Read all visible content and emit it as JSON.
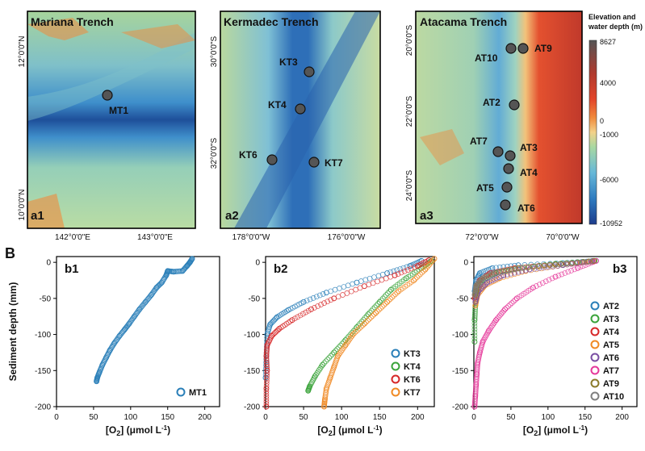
{
  "figure_labels": {
    "panel_b": "B"
  },
  "maps": [
    {
      "id": "a1",
      "title": "Mariana Trench",
      "panel": "a1",
      "yticks": [
        "12°0'0\"N",
        "10°0'0\"N"
      ],
      "xticks": [
        "142°0'0\"E",
        "143°0'0\"E"
      ],
      "sites": [
        {
          "name": "MT1"
        }
      ]
    },
    {
      "id": "a2",
      "title": "Kermadec Trench",
      "panel": "a2",
      "yticks": [
        "30°0'0\"S",
        "32°0'0\"S"
      ],
      "xticks": [
        "178°0'0\"W",
        "176°0'0\"W"
      ],
      "sites": [
        {
          "name": "KT3"
        },
        {
          "name": "KT4"
        },
        {
          "name": "KT6"
        },
        {
          "name": "KT7"
        }
      ]
    },
    {
      "id": "a3",
      "title": "Atacama Trench",
      "panel": "a3",
      "yticks": [
        "20°0'0\"S",
        "22°0'0\"S",
        "24°0'0\"S"
      ],
      "xticks": [
        "72°0'0\"W",
        "70°0'0\"W"
      ],
      "sites": [
        {
          "name": "AT10"
        },
        {
          "name": "AT9"
        },
        {
          "name": "AT2"
        },
        {
          "name": "AT7"
        },
        {
          "name": "AT3"
        },
        {
          "name": "AT4"
        },
        {
          "name": "AT5"
        },
        {
          "name": "AT6"
        }
      ]
    }
  ],
  "colorbar": {
    "title_line1": "Elevation and",
    "title_line2": "water depth (m)",
    "labels": [
      "8627",
      "4000",
      "0",
      "-1000",
      "-6000",
      "-10952"
    ],
    "colors": [
      "#555555",
      "#c0392b",
      "#e2452a",
      "#f08a3c",
      "#f3d28a",
      "#a8d8a2",
      "#67b8d8",
      "#2f7cc0",
      "#1d3c8c"
    ]
  },
  "chart_data": [
    {
      "type": "scatter",
      "panel": "b1",
      "xlabel": "[O2] (μmol L-1)",
      "ylabel": "Sediment depth (mm)",
      "xlim": [
        0,
        220
      ],
      "ylim": [
        -200,
        8
      ],
      "xticks": [
        0,
        50,
        100,
        150,
        200
      ],
      "yticks": [
        0,
        -50,
        -100,
        -150,
        -200
      ],
      "legend_position": "bottom-right",
      "series": [
        {
          "name": "MT1",
          "color": "#2a7fb8",
          "points": [
            [
              183,
              5
            ],
            [
              180,
              0
            ],
            [
              176,
              -5
            ],
            [
              170,
              -12
            ],
            [
              158,
              -13
            ],
            [
              150,
              -12
            ],
            [
              148,
              -18
            ],
            [
              142,
              -28
            ],
            [
              135,
              -35
            ],
            [
              128,
              -45
            ],
            [
              120,
              -55
            ],
            [
              112,
              -65
            ],
            [
              105,
              -75
            ],
            [
              98,
              -85
            ],
            [
              92,
              -93
            ],
            [
              85,
              -102
            ],
            [
              78,
              -112
            ],
            [
              72,
              -122
            ],
            [
              67,
              -132
            ],
            [
              62,
              -142
            ],
            [
              58,
              -152
            ],
            [
              55,
              -160
            ],
            [
              54,
              -165
            ]
          ]
        }
      ]
    },
    {
      "type": "scatter",
      "panel": "b2",
      "xlabel": "[O2] (μmol L-1)",
      "ylabel": "",
      "xlim": [
        0,
        222
      ],
      "ylim": [
        -200,
        8
      ],
      "xticks": [
        0,
        50,
        100,
        150,
        200
      ],
      "yticks": [
        0,
        -50,
        -100,
        -150,
        -200
      ],
      "legend_position": "bottom-right",
      "series": [
        {
          "name": "KT3",
          "color": "#2a7fb8",
          "points": [
            [
              205,
              2
            ],
            [
              190,
              -5
            ],
            [
              160,
              -15
            ],
            [
              120,
              -28
            ],
            [
              80,
              -42
            ],
            [
              50,
              -55
            ],
            [
              30,
              -66
            ],
            [
              15,
              -76
            ],
            [
              6,
              -86
            ],
            [
              2,
              -100
            ],
            [
              1,
              -130
            ],
            [
              0,
              -160
            ]
          ]
        },
        {
          "name": "KT4",
          "color": "#3aa33a",
          "points": [
            [
              218,
              2
            ],
            [
              205,
              -8
            ],
            [
              185,
              -22
            ],
            [
              165,
              -38
            ],
            [
              150,
              -55
            ],
            [
              135,
              -72
            ],
            [
              120,
              -90
            ],
            [
              105,
              -108
            ],
            [
              90,
              -125
            ],
            [
              75,
              -142
            ],
            [
              65,
              -158
            ],
            [
              58,
              -172
            ],
            [
              56,
              -178
            ]
          ]
        },
        {
          "name": "KT6",
          "color": "#d62728",
          "points": [
            [
              215,
              3
            ],
            [
              200,
              -5
            ],
            [
              170,
              -18
            ],
            [
              130,
              -33
            ],
            [
              90,
              -50
            ],
            [
              60,
              -65
            ],
            [
              35,
              -80
            ],
            [
              18,
              -92
            ],
            [
              8,
              -102
            ],
            [
              2,
              -115
            ],
            [
              1,
              -130
            ],
            [
              2,
              -150
            ],
            [
              1,
              -175
            ],
            [
              1,
              -200
            ]
          ]
        },
        {
          "name": "KT7",
          "color": "#f08a24",
          "points": [
            [
              222,
              5
            ],
            [
              210,
              -10
            ],
            [
              195,
              -25
            ],
            [
              175,
              -40
            ],
            [
              160,
              -55
            ],
            [
              145,
              -70
            ],
            [
              130,
              -85
            ],
            [
              115,
              -100
            ],
            [
              105,
              -115
            ],
            [
              95,
              -130
            ],
            [
              90,
              -145
            ],
            [
              85,
              -160
            ],
            [
              80,
              -175
            ],
            [
              78,
              -190
            ],
            [
              77,
              -200
            ]
          ]
        }
      ]
    },
    {
      "type": "scatter",
      "panel": "b3",
      "xlabel": "[O2] (μmol L-1)",
      "ylabel": "",
      "xlim": [
        0,
        220
      ],
      "ylim": [
        -200,
        8
      ],
      "xticks": [
        0,
        50,
        100,
        150,
        200
      ],
      "yticks": [
        0,
        -50,
        -100,
        -150,
        -200
      ],
      "legend_position": "right",
      "series": [
        {
          "name": "AT2",
          "color": "#2a7fb8",
          "points": [
            [
              165,
              2
            ],
            [
              120,
              -1
            ],
            [
              60,
              -4
            ],
            [
              25,
              -8
            ],
            [
              8,
              -15
            ],
            [
              3,
              -25
            ],
            [
              1,
              -40
            ]
          ]
        },
        {
          "name": "AT3",
          "color": "#3aa33a",
          "points": [
            [
              163,
              2
            ],
            [
              110,
              -2
            ],
            [
              60,
              -8
            ],
            [
              30,
              -15
            ],
            [
              12,
              -25
            ],
            [
              4,
              -40
            ],
            [
              2,
              -60
            ],
            [
              1,
              -80
            ],
            [
              1,
              -110
            ]
          ]
        },
        {
          "name": "AT4",
          "color": "#d62728",
          "points": [
            [
              160,
              1
            ],
            [
              110,
              -3
            ],
            [
              55,
              -8
            ],
            [
              22,
              -15
            ],
            [
              8,
              -25
            ],
            [
              3,
              -35
            ],
            [
              1,
              -50
            ]
          ]
        },
        {
          "name": "AT5",
          "color": "#f08a24",
          "points": [
            [
              162,
              2
            ],
            [
              120,
              -4
            ],
            [
              70,
              -12
            ],
            [
              35,
              -22
            ],
            [
              15,
              -32
            ],
            [
              5,
              -45
            ],
            [
              2,
              -60
            ]
          ]
        },
        {
          "name": "AT6",
          "color": "#7a4fa3",
          "points": [
            [
              160,
              2
            ],
            [
              120,
              -4
            ],
            [
              75,
              -10
            ],
            [
              40,
              -18
            ],
            [
              18,
              -28
            ],
            [
              6,
              -40
            ],
            [
              2,
              -55
            ]
          ]
        },
        {
          "name": "AT7",
          "color": "#e5389a",
          "points": [
            [
              165,
              2
            ],
            [
              140,
              -8
            ],
            [
              110,
              -20
            ],
            [
              80,
              -35
            ],
            [
              58,
              -50
            ],
            [
              42,
              -65
            ],
            [
              30,
              -80
            ],
            [
              20,
              -95
            ],
            [
              12,
              -110
            ],
            [
              8,
              -125
            ],
            [
              5,
              -140
            ],
            [
              4,
              -155
            ],
            [
              3,
              -170
            ],
            [
              2,
              -185
            ],
            [
              1,
              -200
            ]
          ]
        },
        {
          "name": "AT9",
          "color": "#8b7a2a",
          "points": [
            [
              162,
              2
            ],
            [
              110,
              -3
            ],
            [
              60,
              -8
            ],
            [
              30,
              -14
            ],
            [
              12,
              -22
            ],
            [
              4,
              -32
            ],
            [
              2,
              -45
            ]
          ]
        },
        {
          "name": "AT10",
          "color": "#7f7f7f",
          "points": [
            [
              158,
              1
            ],
            [
              115,
              -3
            ],
            [
              65,
              -8
            ],
            [
              30,
              -14
            ],
            [
              12,
              -22
            ],
            [
              3,
              -32
            ],
            [
              1,
              -45
            ]
          ]
        }
      ]
    }
  ]
}
